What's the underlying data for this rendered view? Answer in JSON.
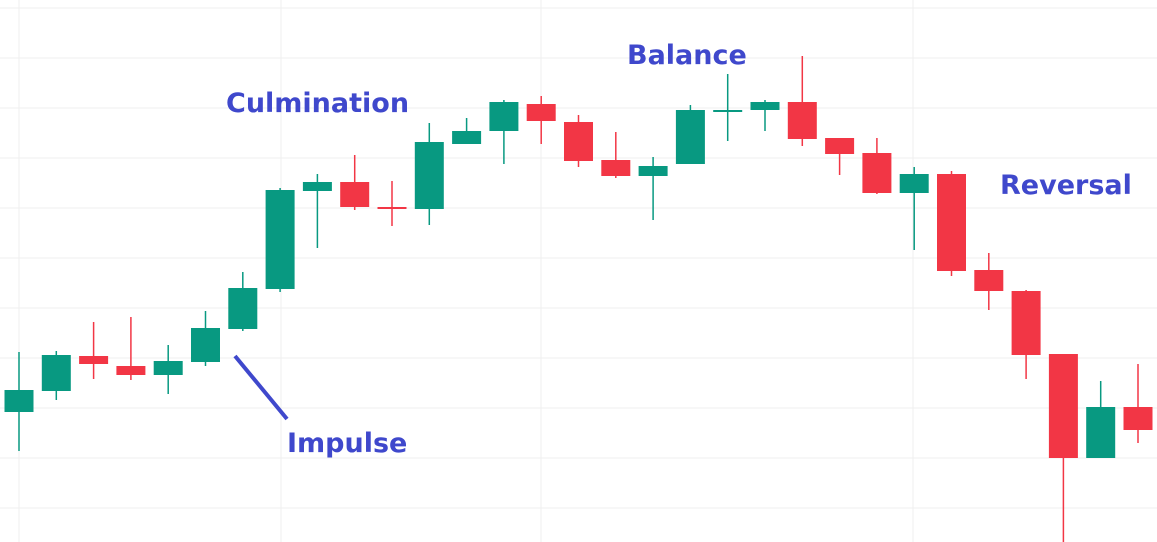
{
  "chart_data": {
    "type": "candlestick",
    "title": "",
    "xlabel": "",
    "ylabel": "",
    "ylim": [
      0,
      542
    ],
    "grid": true,
    "colors": {
      "up": "#089981",
      "down": "#f23645",
      "grid": "#efefef",
      "annotation": "#3f48cc"
    },
    "candles": [
      {
        "open": 130,
        "high": 190,
        "low": 91,
        "close": 152
      },
      {
        "open": 151,
        "high": 191,
        "low": 142,
        "close": 187
      },
      {
        "open": 186,
        "high": 220,
        "low": 163,
        "close": 178
      },
      {
        "open": 176,
        "high": 225,
        "low": 162,
        "close": 167
      },
      {
        "open": 167,
        "high": 197,
        "low": 148,
        "close": 181
      },
      {
        "open": 180,
        "high": 231,
        "low": 176,
        "close": 214
      },
      {
        "open": 213,
        "high": 270,
        "low": 211,
        "close": 254
      },
      {
        "open": 253,
        "high": 354,
        "low": 250,
        "close": 352
      },
      {
        "open": 351,
        "high": 368,
        "low": 294,
        "close": 360
      },
      {
        "open": 360,
        "high": 387,
        "low": 332,
        "close": 335
      },
      {
        "open": 335,
        "high": 361,
        "low": 316,
        "close": 334
      },
      {
        "open": 333,
        "high": 419,
        "low": 317,
        "close": 400
      },
      {
        "open": 398,
        "high": 424,
        "low": 398,
        "close": 411
      },
      {
        "open": 411,
        "high": 442,
        "low": 378,
        "close": 440
      },
      {
        "open": 438,
        "high": 446,
        "low": 398,
        "close": 421
      },
      {
        "open": 420,
        "high": 427,
        "low": 375,
        "close": 381
      },
      {
        "open": 382,
        "high": 410,
        "low": 364,
        "close": 366
      },
      {
        "open": 366,
        "high": 385,
        "low": 322,
        "close": 376
      },
      {
        "open": 378,
        "high": 437,
        "low": 378,
        "close": 432
      },
      {
        "open": 432,
        "high": 468,
        "low": 401,
        "close": 432
      },
      {
        "open": 432,
        "high": 442,
        "low": 411,
        "close": 440
      },
      {
        "open": 440,
        "high": 486,
        "low": 396,
        "close": 403
      },
      {
        "open": 404,
        "high": 404,
        "low": 367,
        "close": 388
      },
      {
        "open": 389,
        "high": 404,
        "low": 348,
        "close": 349
      },
      {
        "open": 349,
        "high": 375,
        "low": 292,
        "close": 368
      },
      {
        "open": 368,
        "high": 371,
        "low": 266,
        "close": 271
      },
      {
        "open": 272,
        "high": 289,
        "low": 232,
        "close": 251
      },
      {
        "open": 251,
        "high": 252,
        "low": 163,
        "close": 187
      },
      {
        "open": 188,
        "high": 188,
        "low": 0,
        "close": 84
      },
      {
        "open": 84,
        "high": 161,
        "low": 84,
        "close": 135
      },
      {
        "open": 135,
        "high": 178,
        "low": 99,
        "close": 112
      }
    ],
    "annotations": [
      {
        "text": "Culmination",
        "candle_index": 7
      },
      {
        "text": "Balance",
        "candle_index": 19
      },
      {
        "text": "Reversal",
        "candle_index": 27
      },
      {
        "text": "Impulse",
        "candle_index": 5
      }
    ]
  }
}
